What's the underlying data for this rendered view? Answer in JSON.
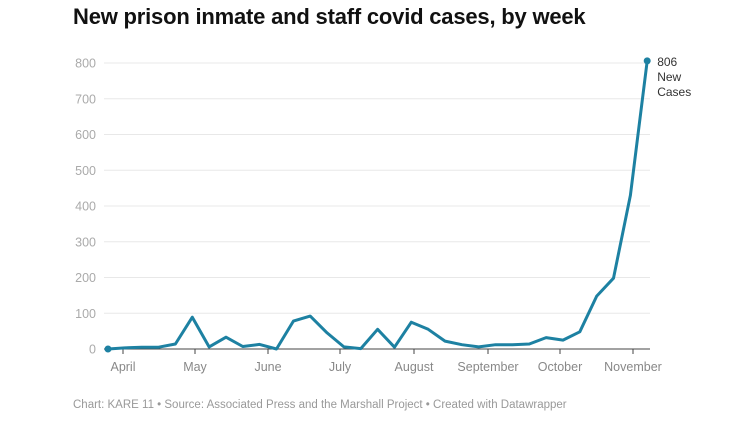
{
  "chart_data": {
    "type": "line",
    "title": "New prison inmate and staff covid cases, by week",
    "xlabel": "",
    "ylabel": "",
    "ylim": [
      0,
      800
    ],
    "yticks": [
      0,
      100,
      200,
      300,
      400,
      500,
      600,
      700,
      800
    ],
    "ytick_labels": [
      "0",
      "100",
      "200",
      "300",
      "400",
      "500",
      "600",
      "700",
      "800"
    ],
    "xtick_labels": [
      "April",
      "May",
      "June",
      "July",
      "August",
      "September",
      "October",
      "November"
    ],
    "grid": true,
    "line_color": "#1d81a2",
    "series": [
      {
        "name": "New Cases",
        "values": [
          0,
          3,
          5,
          5,
          14,
          89,
          6,
          33,
          7,
          13,
          0,
          78,
          92,
          45,
          6,
          1,
          55,
          5,
          75,
          55,
          22,
          12,
          6,
          12,
          12,
          14,
          32,
          25,
          48,
          148,
          198,
          430,
          806
        ]
      }
    ],
    "annotation": {
      "value": "806",
      "line1": "New",
      "line2": "Cases"
    }
  },
  "footer": "Chart: KARE 11 • Source: Associated Press and the Marshall Project • Created with Datawrapper"
}
